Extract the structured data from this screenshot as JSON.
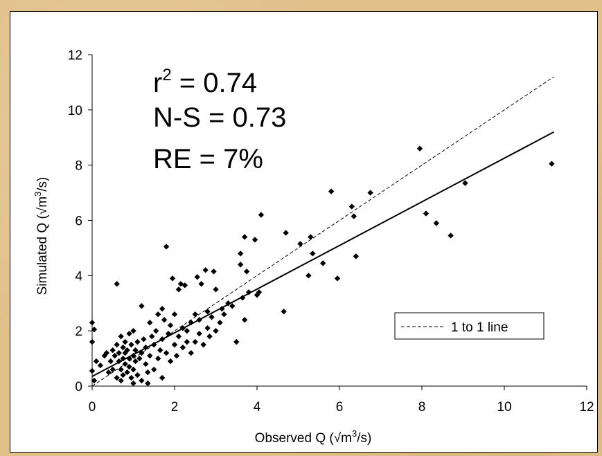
{
  "chart_data": {
    "type": "scatter",
    "xlabel": "Observed Q (√m",
    "xlabel_sup": "3",
    "xlabel_end": "/s)",
    "ylabel": "Simulated Q (√m",
    "ylabel_sup": "3",
    "ylabel_end": "/s)",
    "xlim": [
      0,
      12
    ],
    "ylim": [
      0,
      12
    ],
    "x_ticks": [
      "0",
      "2",
      "4",
      "6",
      "8",
      "10",
      "12"
    ],
    "y_ticks": [
      "0",
      "2",
      "4",
      "6",
      "8",
      "10",
      "12"
    ],
    "grid": false,
    "legend": {
      "placement": "right",
      "entries": [
        "1 to 1 line"
      ]
    },
    "annotations": {
      "r2_prefix": "r",
      "r2_sup": "2",
      "r2_value": " = 0.74",
      "ns": "N-S = 0.73",
      "re": "RE = 7%"
    },
    "one_to_one_line": {
      "x": [
        0,
        11.2
      ],
      "y": [
        0,
        11.2
      ]
    },
    "fit_line": {
      "x": [
        0,
        11.2
      ],
      "y": [
        0.35,
        9.2
      ]
    },
    "points": [
      [
        0,
        2.3
      ],
      [
        0.05,
        2.05
      ],
      [
        0,
        1.6
      ],
      [
        0,
        0.55
      ],
      [
        0.05,
        0.2
      ],
      [
        0.1,
        0.9
      ],
      [
        0.2,
        0.75
      ],
      [
        0.3,
        1.1
      ],
      [
        0.35,
        1.2
      ],
      [
        0.4,
        0.5
      ],
      [
        0.45,
        0.9
      ],
      [
        0.5,
        1.3
      ],
      [
        0.5,
        0.6
      ],
      [
        0.55,
        1.1
      ],
      [
        0.6,
        1.5
      ],
      [
        0.6,
        0.3
      ],
      [
        0.6,
        3.7
      ],
      [
        0.65,
        0.9
      ],
      [
        0.65,
        1.2
      ],
      [
        0.7,
        0.6
      ],
      [
        0.7,
        1.8
      ],
      [
        0.7,
        0.2
      ],
      [
        0.75,
        1.0
      ],
      [
        0.75,
        1.4
      ],
      [
        0.75,
        0.4
      ],
      [
        0.8,
        1.6
      ],
      [
        0.8,
        0.8
      ],
      [
        0.8,
        1.2
      ],
      [
        0.85,
        1.3
      ],
      [
        0.85,
        0.5
      ],
      [
        0.9,
        1.0
      ],
      [
        0.9,
        1.9
      ],
      [
        0.9,
        0.7
      ],
      [
        0.95,
        0.3
      ],
      [
        0.95,
        1.5
      ],
      [
        1.0,
        0.1
      ],
      [
        1.0,
        1.1
      ],
      [
        1.0,
        2.0
      ],
      [
        1.0,
        0.6
      ],
      [
        1.05,
        0.9
      ],
      [
        1.05,
        1.3
      ],
      [
        1.1,
        1.6
      ],
      [
        1.1,
        0.4
      ],
      [
        1.15,
        1.0
      ],
      [
        1.2,
        2.9
      ],
      [
        1.2,
        1.2
      ],
      [
        1.2,
        0.2
      ],
      [
        1.25,
        1.7
      ],
      [
        1.3,
        0.8
      ],
      [
        1.3,
        1.4
      ],
      [
        1.35,
        0.5
      ],
      [
        1.35,
        0.1
      ],
      [
        1.4,
        1.1
      ],
      [
        1.4,
        2.3
      ],
      [
        1.45,
        1.8
      ],
      [
        1.5,
        0.6
      ],
      [
        1.5,
        1.5
      ],
      [
        1.55,
        2.0
      ],
      [
        1.6,
        1.0
      ],
      [
        1.6,
        2.6
      ],
      [
        1.65,
        1.3
      ],
      [
        1.7,
        0.3
      ],
      [
        1.7,
        1.7
      ],
      [
        1.7,
        2.8
      ],
      [
        1.75,
        2.4
      ],
      [
        1.8,
        1.2
      ],
      [
        1.8,
        5.05
      ],
      [
        1.85,
        1.9
      ],
      [
        1.9,
        0.9
      ],
      [
        1.9,
        2.2
      ],
      [
        1.95,
        3.9
      ],
      [
        2.0,
        1.5
      ],
      [
        2.0,
        2.6
      ],
      [
        2.05,
        1.1
      ],
      [
        2.1,
        3.5
      ],
      [
        2.1,
        1.8
      ],
      [
        2.15,
        3.7
      ],
      [
        2.2,
        2.1
      ],
      [
        2.2,
        1.4
      ],
      [
        2.25,
        3.65
      ],
      [
        2.3,
        2.0
      ],
      [
        2.3,
        1.6
      ],
      [
        2.4,
        2.3
      ],
      [
        2.4,
        1.2
      ],
      [
        2.5,
        1.6
      ],
      [
        2.5,
        2.6
      ],
      [
        2.55,
        3.95
      ],
      [
        2.6,
        2.4
      ],
      [
        2.6,
        1.9
      ],
      [
        2.65,
        3.7
      ],
      [
        2.7,
        1.5
      ],
      [
        2.75,
        4.2
      ],
      [
        2.8,
        2.1
      ],
      [
        2.8,
        2.7
      ],
      [
        2.85,
        1.8
      ],
      [
        2.9,
        2.5
      ],
      [
        2.95,
        4.15
      ],
      [
        3.0,
        3.5
      ],
      [
        3.0,
        2.0
      ],
      [
        3.1,
        2.3
      ],
      [
        3.15,
        2.8
      ],
      [
        3.2,
        2.6
      ],
      [
        3.3,
        3.0
      ],
      [
        3.4,
        2.9
      ],
      [
        3.5,
        1.6
      ],
      [
        3.6,
        4.8
      ],
      [
        3.6,
        4.4
      ],
      [
        3.65,
        3.2
      ],
      [
        3.7,
        2.4
      ],
      [
        3.7,
        5.4
      ],
      [
        3.75,
        4.15
      ],
      [
        3.8,
        3.4
      ],
      [
        3.95,
        5.3
      ],
      [
        4.0,
        3.3
      ],
      [
        4.05,
        3.4
      ],
      [
        4.1,
        6.2
      ],
      [
        4.65,
        2.7
      ],
      [
        4.7,
        5.55
      ],
      [
        5.05,
        5.15
      ],
      [
        5.25,
        4.0
      ],
      [
        5.3,
        5.4
      ],
      [
        5.35,
        4.8
      ],
      [
        5.6,
        4.45
      ],
      [
        5.8,
        7.05
      ],
      [
        5.95,
        3.9
      ],
      [
        6.3,
        6.5
      ],
      [
        6.35,
        6.15
      ],
      [
        6.4,
        4.7
      ],
      [
        6.75,
        7.0
      ],
      [
        7.95,
        8.6
      ],
      [
        8.1,
        6.25
      ],
      [
        8.35,
        5.9
      ],
      [
        8.7,
        5.45
      ],
      [
        9.05,
        7.35
      ],
      [
        11.15,
        8.05
      ]
    ]
  }
}
